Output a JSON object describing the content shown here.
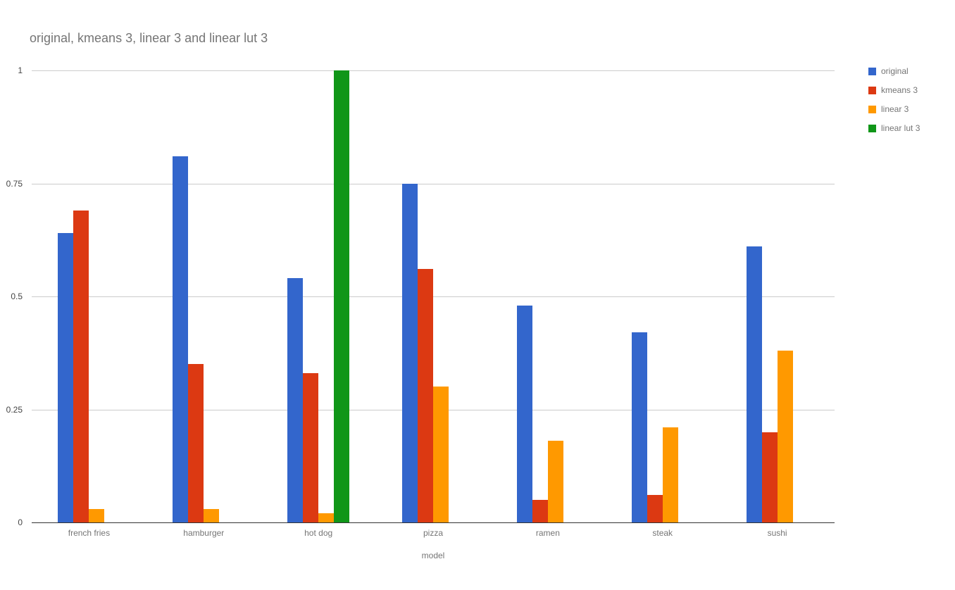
{
  "chart_data": {
    "type": "bar",
    "title": "original, kmeans 3, linear 3 and linear lut 3",
    "xlabel": "model",
    "ylabel": "",
    "ylim": [
      0,
      1
    ],
    "yticks": [
      0,
      0.25,
      0.5,
      0.75,
      1
    ],
    "ytick_labels": [
      "0",
      "0.25",
      "0.5",
      "0.75",
      "1"
    ],
    "grid": true,
    "legend_position": "right",
    "categories": [
      "french fries",
      "hamburger",
      "hot dog",
      "pizza",
      "ramen",
      "steak",
      "sushi"
    ],
    "series": [
      {
        "name": "original",
        "color": "#3366cc",
        "values": [
          0.64,
          0.81,
          0.54,
          0.75,
          0.48,
          0.42,
          0.61
        ]
      },
      {
        "name": "kmeans 3",
        "color": "#dc3912",
        "values": [
          0.69,
          0.35,
          0.33,
          0.56,
          0.05,
          0.06,
          0.2
        ]
      },
      {
        "name": "linear 3",
        "color": "#ff9900",
        "values": [
          0.03,
          0.03,
          0.02,
          0.3,
          0.18,
          0.21,
          0.38
        ]
      },
      {
        "name": "linear lut 3",
        "color": "#109618",
        "values": [
          0,
          0,
          1.0,
          0,
          0,
          0,
          0
        ]
      }
    ],
    "colors": {
      "background": "#ffffff",
      "gridline": "#cccccc",
      "axis_line": "#333333",
      "title_text": "#757575",
      "tick_text": "#444444",
      "label_text": "#757575"
    }
  }
}
